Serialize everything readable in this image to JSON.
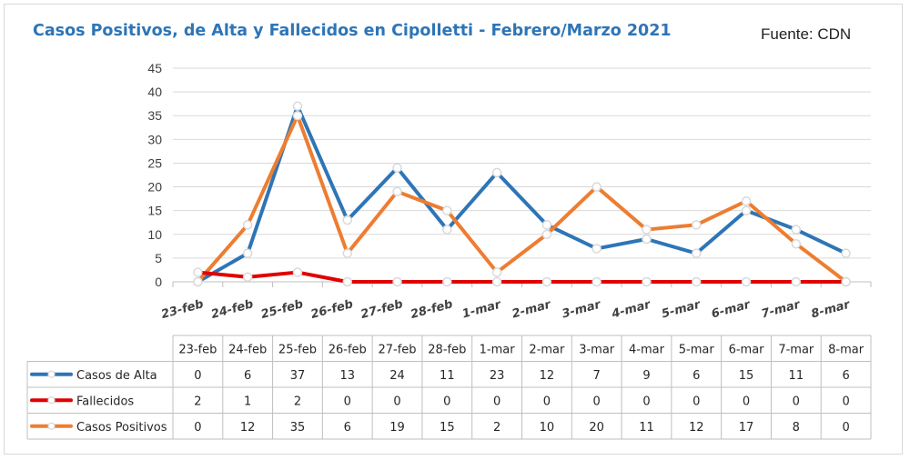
{
  "title": "Casos Positivos, de Alta y Fallecidos  en Cipolletti - Febrero/Marzo 2021",
  "source": "Fuente: CDN",
  "chart_data": {
    "type": "line",
    "title": "Casos Positivos, de Alta y Fallecidos  en Cipolletti - Febrero/Marzo 2021",
    "categories": [
      "23-feb",
      "24-feb",
      "25-feb",
      "26-feb",
      "27-feb",
      "28-feb",
      "1-mar",
      "2-mar",
      "3-mar",
      "4-mar",
      "5-mar",
      "6-mar",
      "7-mar",
      "8-mar"
    ],
    "ylim": [
      0,
      45
    ],
    "yticks": [
      0,
      5,
      10,
      15,
      20,
      25,
      30,
      35,
      40,
      45
    ],
    "grid": true,
    "legend": "data-table",
    "series": [
      {
        "name": "Casos de Alta",
        "color": "#2e75b6",
        "values": [
          0,
          6,
          37,
          13,
          24,
          11,
          23,
          12,
          7,
          9,
          6,
          15,
          11,
          6
        ]
      },
      {
        "name": "Fallecidos",
        "color": "#e00000",
        "values": [
          2,
          1,
          2,
          0,
          0,
          0,
          0,
          0,
          0,
          0,
          0,
          0,
          0,
          0
        ]
      },
      {
        "name": "Casos Positivos",
        "color": "#ed7d31",
        "values": [
          0,
          12,
          35,
          6,
          19,
          15,
          2,
          10,
          20,
          11,
          12,
          17,
          8,
          0
        ]
      }
    ]
  }
}
